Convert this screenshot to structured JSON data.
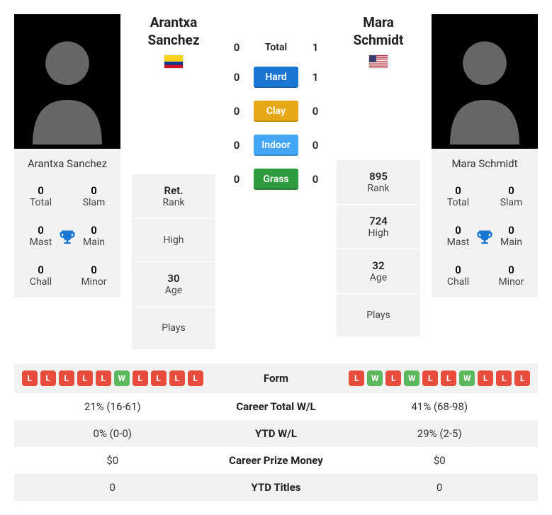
{
  "player1": {
    "name": "Arantxa Sanchez",
    "flag": "co",
    "card_stats": [
      {
        "val": "0",
        "lbl": "Total"
      },
      {
        "val": "0",
        "lbl": "Slam"
      },
      {
        "val": "0",
        "lbl": "Mast"
      },
      {
        "val": "0",
        "lbl": "Main"
      },
      {
        "val": "0",
        "lbl": "Chall"
      },
      {
        "val": "0",
        "lbl": "Minor"
      }
    ],
    "info": [
      {
        "val": "Ret.",
        "lbl": "Rank"
      },
      {
        "single": "High"
      },
      {
        "val": "30",
        "lbl": "Age"
      },
      {
        "single": "Plays"
      }
    ],
    "form": [
      "L",
      "L",
      "L",
      "L",
      "L",
      "W",
      "L",
      "L",
      "L",
      "L"
    ]
  },
  "player2": {
    "name": "Mara Schmidt",
    "flag": "us",
    "card_stats": [
      {
        "val": "0",
        "lbl": "Total"
      },
      {
        "val": "0",
        "lbl": "Slam"
      },
      {
        "val": "0",
        "lbl": "Mast"
      },
      {
        "val": "0",
        "lbl": "Main"
      },
      {
        "val": "0",
        "lbl": "Chall"
      },
      {
        "val": "0",
        "lbl": "Minor"
      }
    ],
    "info": [
      {
        "val": "895",
        "lbl": "Rank"
      },
      {
        "val": "724",
        "lbl": "High"
      },
      {
        "val": "32",
        "lbl": "Age"
      },
      {
        "single": "Plays"
      }
    ],
    "form": [
      "L",
      "W",
      "L",
      "W",
      "L",
      "L",
      "W",
      "L",
      "L",
      "L"
    ]
  },
  "h2h": {
    "total_label": "Total",
    "rows": [
      {
        "p1": "0",
        "label": "Total",
        "p2": "1",
        "type": "plain"
      },
      {
        "p1": "0",
        "label": "Hard",
        "p2": "1",
        "type": "hard"
      },
      {
        "p1": "0",
        "label": "Clay",
        "p2": "0",
        "type": "clay"
      },
      {
        "p1": "0",
        "label": "Indoor",
        "p2": "0",
        "type": "indoor"
      },
      {
        "p1": "0",
        "label": "Grass",
        "p2": "0",
        "type": "grass"
      }
    ]
  },
  "table": [
    {
      "mid": "Form",
      "type": "form"
    },
    {
      "p1": "21% (16-61)",
      "mid": "Career Total W/L",
      "p2": "41% (68-98)"
    },
    {
      "p1": "0% (0-0)",
      "mid": "YTD W/L",
      "p2": "29% (2-5)"
    },
    {
      "p1": "$0",
      "mid": "Career Prize Money",
      "p2": "$0"
    },
    {
      "p1": "0",
      "mid": "YTD Titles",
      "p2": "0"
    }
  ]
}
